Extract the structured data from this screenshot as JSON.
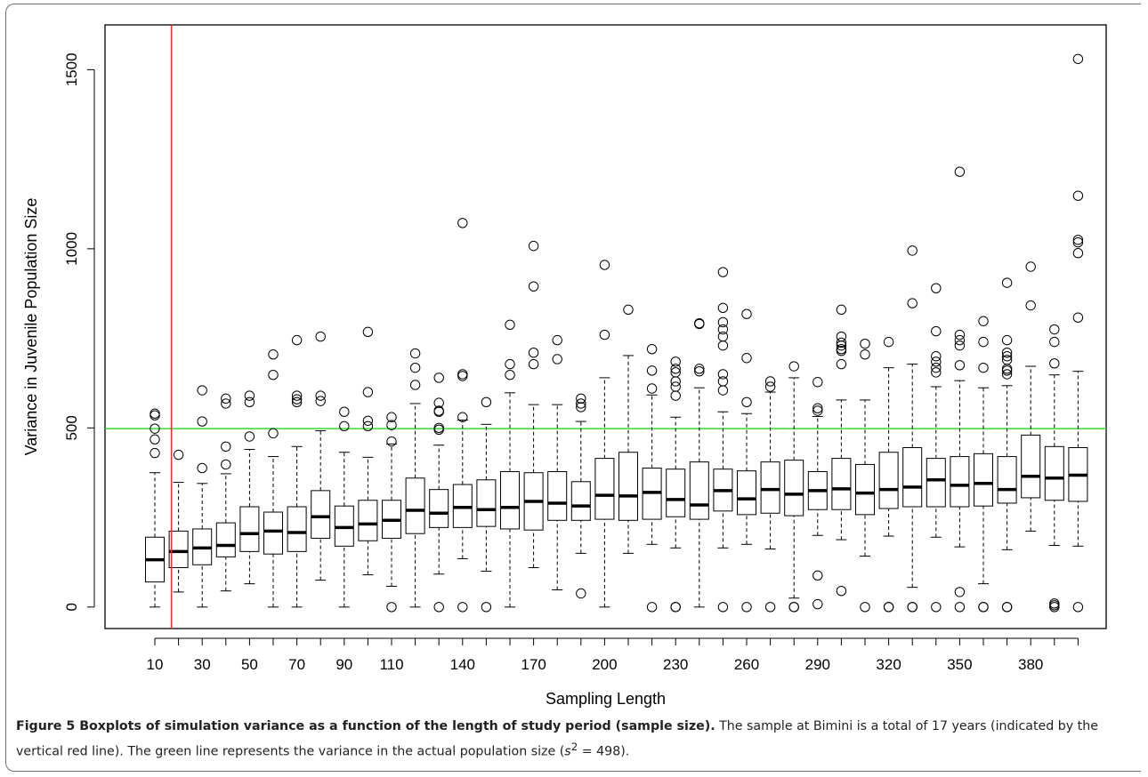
{
  "chart_data": {
    "type": "boxplot",
    "xlabel": "Sampling Length",
    "ylabel": "Variance in Juvenile Population Size",
    "ylim": [
      -60,
      1625
    ],
    "y_ticks": [
      "0",
      "500",
      "1000",
      "1500"
    ],
    "x_tick_labels": [
      "10",
      "30",
      "50",
      "70",
      "90",
      "110",
      "140",
      "170",
      "200",
      "230",
      "260",
      "290",
      "320",
      "350",
      "380"
    ],
    "categories": [
      10,
      20,
      30,
      40,
      50,
      60,
      70,
      80,
      90,
      100,
      110,
      120,
      130,
      140,
      150,
      160,
      170,
      180,
      190,
      200,
      210,
      220,
      230,
      240,
      250,
      260,
      270,
      280,
      290,
      300,
      310,
      320,
      330,
      340,
      350,
      360,
      370,
      380,
      390,
      400
    ],
    "series": [
      {
        "min": 0,
        "q1": 70,
        "median": 132,
        "q3": 195,
        "max": 375,
        "outliers": [
          430,
          468,
          498,
          535,
          540
        ]
      },
      {
        "min": 42,
        "q1": 110,
        "median": 155,
        "q3": 212,
        "max": 348,
        "outliers": [
          425
        ]
      },
      {
        "min": 0,
        "q1": 118,
        "median": 165,
        "q3": 218,
        "max": 345,
        "outliers": [
          388,
          518,
          605
        ]
      },
      {
        "min": 45,
        "q1": 140,
        "median": 172,
        "q3": 235,
        "max": 372,
        "outliers": [
          398,
          448,
          568,
          582
        ]
      },
      {
        "min": 65,
        "q1": 155,
        "median": 205,
        "q3": 280,
        "max": 440,
        "outliers": [
          476,
          572,
          590
        ]
      },
      {
        "min": 0,
        "q1": 148,
        "median": 212,
        "q3": 265,
        "max": 420,
        "outliers": [
          485,
          648,
          705
        ]
      },
      {
        "min": 0,
        "q1": 155,
        "median": 208,
        "q3": 280,
        "max": 448,
        "outliers": [
          572,
          580,
          590,
          745
        ]
      },
      {
        "min": 75,
        "q1": 192,
        "median": 252,
        "q3": 325,
        "max": 492,
        "outliers": [
          575,
          590,
          755
        ]
      },
      {
        "min": 0,
        "q1": 170,
        "median": 222,
        "q3": 282,
        "max": 432,
        "outliers": [
          505,
          545
        ]
      },
      {
        "min": 90,
        "q1": 185,
        "median": 232,
        "q3": 298,
        "max": 418,
        "outliers": [
          505,
          520,
          600,
          768
        ]
      },
      {
        "min": 58,
        "q1": 192,
        "median": 242,
        "q3": 298,
        "max": 455,
        "outliers": [
          0,
          462,
          508,
          530
        ]
      },
      {
        "min": 0,
        "q1": 205,
        "median": 270,
        "q3": 360,
        "max": 568,
        "outliers": [
          620,
          668,
          708
        ]
      },
      {
        "min": 92,
        "q1": 222,
        "median": 262,
        "q3": 328,
        "max": 452,
        "outliers": [
          0,
          495,
          500,
          545,
          548,
          570,
          640
        ]
      },
      {
        "min": 135,
        "q1": 222,
        "median": 278,
        "q3": 342,
        "max": 522,
        "outliers": [
          0,
          530,
          645,
          650,
          1072
        ]
      },
      {
        "min": 100,
        "q1": 225,
        "median": 272,
        "q3": 355,
        "max": 510,
        "outliers": [
          0,
          572
        ]
      },
      {
        "min": 0,
        "q1": 218,
        "median": 278,
        "q3": 378,
        "max": 598,
        "outliers": [
          648,
          678,
          788
        ]
      },
      {
        "min": 110,
        "q1": 215,
        "median": 295,
        "q3": 375,
        "max": 565,
        "outliers": [
          678,
          710,
          895,
          1008
        ]
      },
      {
        "min": 48,
        "q1": 242,
        "median": 290,
        "q3": 378,
        "max": 565,
        "outliers": [
          692,
          745
        ]
      },
      {
        "min": 150,
        "q1": 242,
        "median": 282,
        "q3": 350,
        "max": 518,
        "outliers": [
          38,
          558,
          568,
          582
        ]
      },
      {
        "min": 0,
        "q1": 245,
        "median": 312,
        "q3": 415,
        "max": 640,
        "outliers": [
          760,
          955
        ]
      },
      {
        "min": 150,
        "q1": 242,
        "median": 310,
        "q3": 432,
        "max": 702,
        "outliers": [
          830
        ]
      },
      {
        "min": 175,
        "q1": 245,
        "median": 320,
        "q3": 388,
        "max": 592,
        "outliers": [
          0,
          610,
          660,
          720
        ]
      },
      {
        "min": 165,
        "q1": 252,
        "median": 300,
        "q3": 385,
        "max": 530,
        "outliers": [
          0,
          0,
          590,
          615,
          630,
          655,
          665,
          685
        ]
      },
      {
        "min": 0,
        "q1": 245,
        "median": 285,
        "q3": 405,
        "max": 612,
        "outliers": [
          658,
          665,
          790,
          792
        ]
      },
      {
        "min": 165,
        "q1": 268,
        "median": 325,
        "q3": 385,
        "max": 545,
        "outliers": [
          0,
          605,
          630,
          650,
          730,
          755,
          775,
          795,
          835,
          935
        ]
      },
      {
        "min": 175,
        "q1": 258,
        "median": 302,
        "q3": 380,
        "max": 540,
        "outliers": [
          0,
          572,
          695,
          818
        ]
      },
      {
        "min": 162,
        "q1": 262,
        "median": 328,
        "q3": 405,
        "max": 600,
        "outliers": [
          0,
          615,
          630
        ]
      },
      {
        "min": 25,
        "q1": 255,
        "median": 315,
        "q3": 410,
        "max": 640,
        "outliers": [
          0,
          0,
          672
        ]
      },
      {
        "min": 200,
        "q1": 272,
        "median": 325,
        "q3": 378,
        "max": 532,
        "outliers": [
          8,
          88,
          548,
          555,
          628
        ]
      },
      {
        "min": 188,
        "q1": 272,
        "median": 330,
        "q3": 415,
        "max": 578,
        "outliers": [
          45,
          678,
          715,
          720,
          730,
          738,
          755,
          830
        ]
      },
      {
        "min": 142,
        "q1": 258,
        "median": 318,
        "q3": 398,
        "max": 578,
        "outliers": [
          0,
          705,
          735
        ]
      },
      {
        "min": 198,
        "q1": 275,
        "median": 328,
        "q3": 432,
        "max": 668,
        "outliers": [
          0,
          0,
          740
        ]
      },
      {
        "min": 55,
        "q1": 280,
        "median": 335,
        "q3": 445,
        "max": 678,
        "outliers": [
          0,
          0,
          848,
          995
        ]
      },
      {
        "min": 195,
        "q1": 280,
        "median": 355,
        "q3": 415,
        "max": 615,
        "outliers": [
          0,
          655,
          668,
          685,
          700,
          770,
          890
        ]
      },
      {
        "min": 168,
        "q1": 280,
        "median": 340,
        "q3": 420,
        "max": 632,
        "outliers": [
          0,
          42,
          675,
          730,
          745,
          760,
          1215
        ]
      },
      {
        "min": 65,
        "q1": 282,
        "median": 345,
        "q3": 428,
        "max": 612,
        "outliers": [
          0,
          0,
          668,
          740,
          798
        ]
      },
      {
        "min": 160,
        "q1": 290,
        "median": 328,
        "q3": 420,
        "max": 618,
        "outliers": [
          0,
          0,
          650,
          660,
          665,
          690,
          700,
          710,
          745,
          905
        ]
      },
      {
        "min": 212,
        "q1": 305,
        "median": 365,
        "q3": 480,
        "max": 672,
        "outliers": [
          842,
          950
        ]
      },
      {
        "min": 172,
        "q1": 298,
        "median": 360,
        "q3": 448,
        "max": 648,
        "outliers": [
          0,
          5,
          10,
          680,
          740,
          775
        ]
      },
      {
        "min": 170,
        "q1": 295,
        "median": 368,
        "q3": 445,
        "max": 658,
        "outliers": [
          0,
          808,
          988,
          1018,
          1025,
          1148,
          1530
        ]
      }
    ],
    "reference_lines": [
      {
        "orientation": "vertical",
        "x": 17,
        "color": "#ff2a2a"
      },
      {
        "orientation": "horizontal",
        "y": 498,
        "color": "#33dd33"
      }
    ]
  },
  "caption": {
    "label": "Figure 5",
    "title": "Boxplots of simulation variance as a function of the length of study period (sample size).",
    "text1": "The sample at Bimini is a total of 17 years (indicated by the vertical red line). The green line represents the variance in the actual population size (",
    "s_symbol": "s",
    "s_exp": "2",
    "eq": " = 498",
    "text2": ")."
  }
}
